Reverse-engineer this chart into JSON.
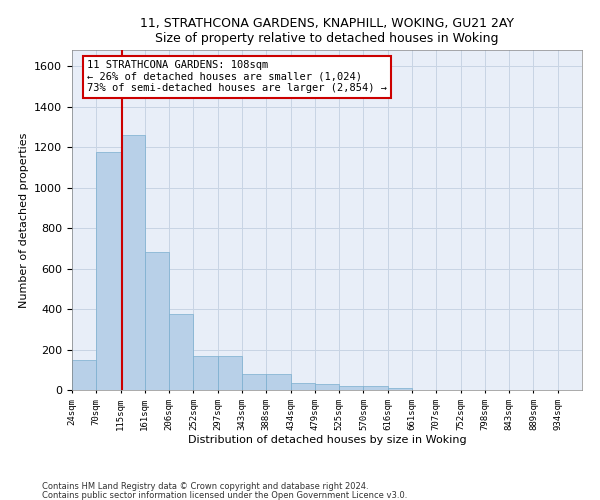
{
  "title1": "11, STRATHCONA GARDENS, KNAPHILL, WOKING, GU21 2AY",
  "title2": "Size of property relative to detached houses in Woking",
  "xlabel": "Distribution of detached houses by size in Woking",
  "ylabel": "Number of detached properties",
  "bin_labels": [
    "24sqm",
    "70sqm",
    "115sqm",
    "161sqm",
    "206sqm",
    "252sqm",
    "297sqm",
    "343sqm",
    "388sqm",
    "434sqm",
    "479sqm",
    "525sqm",
    "570sqm",
    "616sqm",
    "661sqm",
    "707sqm",
    "752sqm",
    "798sqm",
    "843sqm",
    "889sqm",
    "934sqm"
  ],
  "bar_values": [
    150,
    1175,
    1260,
    680,
    375,
    170,
    170,
    80,
    80,
    35,
    30,
    20,
    20,
    10,
    0,
    0,
    0,
    0,
    0,
    0,
    0
  ],
  "bar_color": "#b8d0e8",
  "bar_edge_color": "#7aaecf",
  "grid_color": "#c8d4e4",
  "background_color": "#e8eef8",
  "property_line_x": 2.07,
  "annotation_text": "11 STRATHCONA GARDENS: 108sqm\n← 26% of detached houses are smaller (1,024)\n73% of semi-detached houses are larger (2,854) →",
  "annotation_box_color": "#cc0000",
  "ylim": [
    0,
    1680
  ],
  "yticks": [
    0,
    200,
    400,
    600,
    800,
    1000,
    1200,
    1400,
    1600
  ],
  "footer1": "Contains HM Land Registry data © Crown copyright and database right 2024.",
  "footer2": "Contains public sector information licensed under the Open Government Licence v3.0."
}
